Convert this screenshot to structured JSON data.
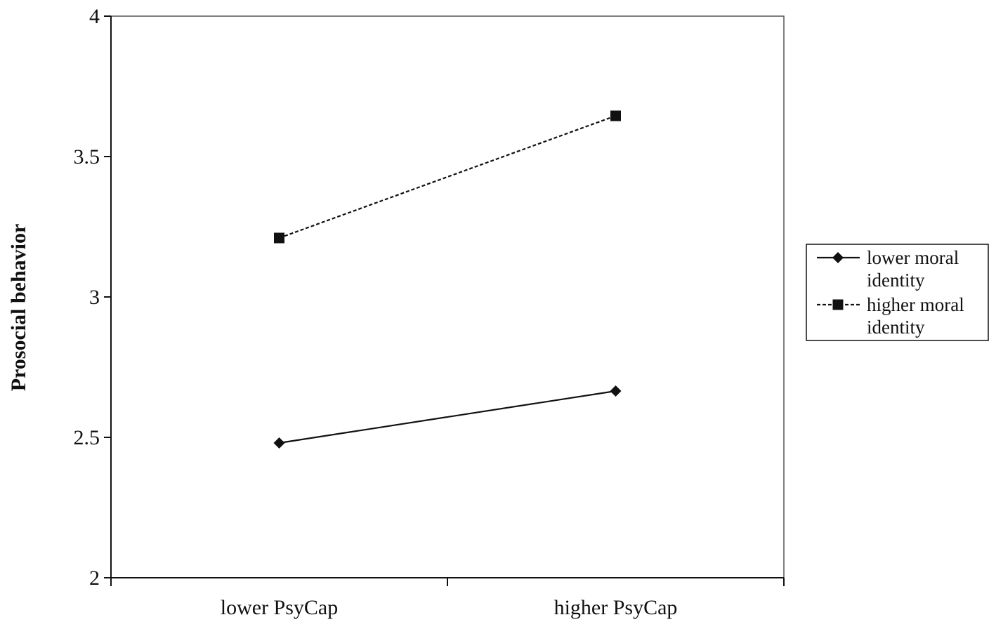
{
  "chart_data": {
    "type": "line",
    "title": "",
    "xlabel": "",
    "ylabel": "Prosocial behavior",
    "categories": [
      "lower PsyCap",
      "higher PsyCap"
    ],
    "ylim": [
      2,
      4
    ],
    "yticks": [
      "2",
      "2.5",
      "3",
      "3.5",
      "4"
    ],
    "grid": false,
    "legend_position": "right",
    "series": [
      {
        "name_lines": [
          "lower moral",
          "identity"
        ],
        "values": [
          2.48,
          2.665
        ],
        "marker": "diamond",
        "line_style": "solid",
        "color": "#111111"
      },
      {
        "name_lines": [
          "higher moral",
          "identity"
        ],
        "values": [
          3.21,
          3.645
        ],
        "marker": "square",
        "line_style": "dashed",
        "color": "#111111"
      }
    ]
  }
}
